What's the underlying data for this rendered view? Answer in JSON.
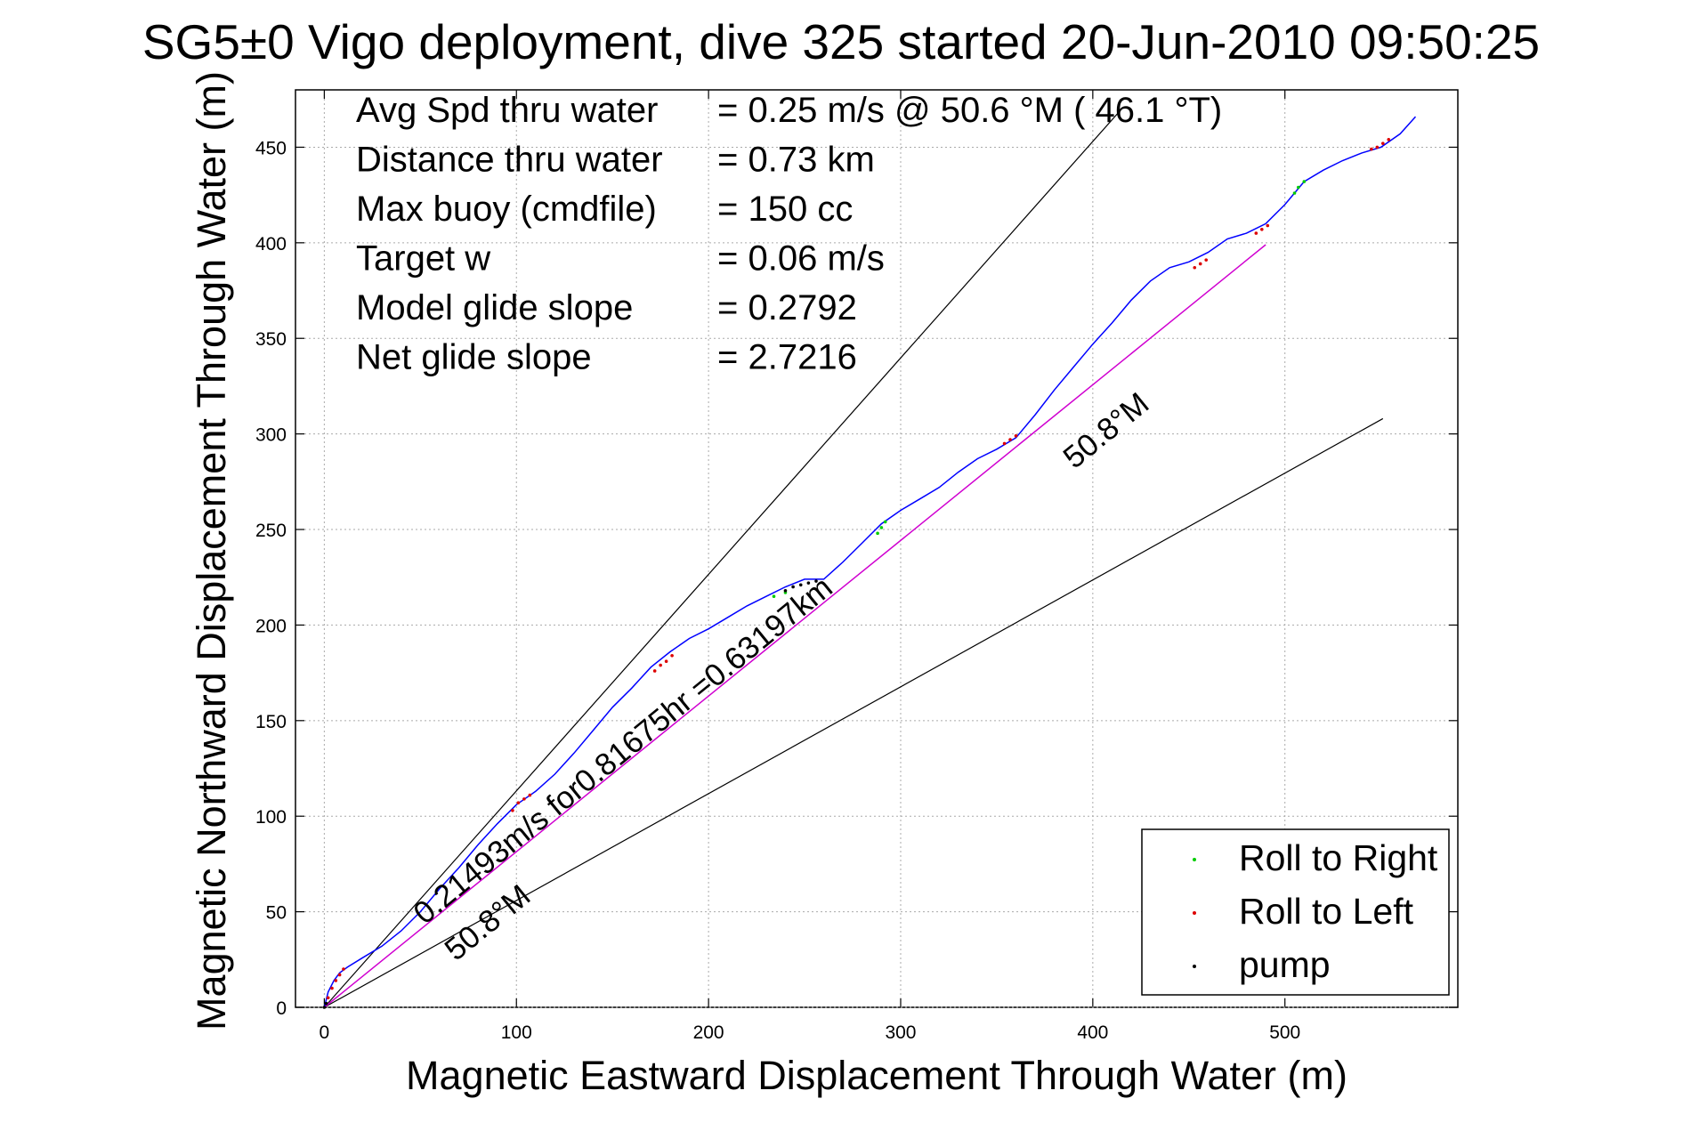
{
  "chart_data": {
    "type": "line",
    "title": "SG5±0 Vigo deployment, dive 325 started 20-Jun-2010 09:50:25",
    "xlabel": "Magnetic Eastward Displacement Through Water (m)",
    "ylabel": "Magnetic Northward Displacement Through Water (m)",
    "xlim": [
      -15,
      590
    ],
    "ylim": [
      0,
      480
    ],
    "xticks": [
      0,
      100,
      200,
      300,
      400,
      500
    ],
    "yticks": [
      0,
      50,
      100,
      150,
      200,
      250,
      300,
      350,
      400,
      450
    ],
    "grid": true,
    "legend_position": "bottom-right",
    "stats": [
      {
        "label": "Avg Spd thru water",
        "value": "=  0.25 m/s @  50.6 °M ( 46.1 °T)"
      },
      {
        "label": "Distance thru water",
        "value": "=  0.73 km"
      },
      {
        "label": "Max buoy (cmdfile)",
        "value": "= 150 cc"
      },
      {
        "label": "Target w",
        "value": "= 0.06 m/s"
      },
      {
        "label": "Model glide slope",
        "value": "= 0.2792"
      },
      {
        "label": "Net glide slope",
        "value": "= 2.7216"
      }
    ],
    "annotations": {
      "net_vector": "0.21493m/s for0.81675hr =0.63197km",
      "heading_upper": "50.8°M",
      "heading_lower": "50.8°M"
    },
    "track": {
      "x": [
        0,
        2,
        5,
        8,
        12,
        20,
        30,
        40,
        50,
        60,
        70,
        80,
        90,
        100,
        110,
        120,
        130,
        140,
        150,
        160,
        170,
        180,
        190,
        200,
        210,
        220,
        230,
        240,
        250,
        260,
        270,
        280,
        290,
        300,
        310,
        320,
        330,
        340,
        350,
        360,
        370,
        380,
        390,
        400,
        410,
        420,
        430,
        440,
        450,
        460,
        470,
        480,
        490,
        500,
        510,
        520,
        530,
        540,
        550,
        560,
        568
      ],
      "y": [
        0,
        8,
        14,
        18,
        21,
        26,
        32,
        40,
        50,
        62,
        73,
        85,
        96,
        106,
        113,
        122,
        133,
        145,
        157,
        167,
        178,
        186,
        193,
        198,
        204,
        210,
        215,
        220,
        224,
        224,
        233,
        243,
        253,
        260,
        266,
        272,
        280,
        287,
        292,
        298,
        310,
        323,
        335,
        347,
        358,
        370,
        380,
        387,
        390,
        395,
        402,
        405,
        410,
        420,
        432,
        438,
        443,
        447,
        450,
        457,
        466
      ]
    },
    "net_line": {
      "x": [
        0,
        490
      ],
      "y": [
        0,
        399
      ]
    },
    "bound_lines": [
      {
        "x": [
          0,
          415
        ],
        "y": [
          0,
          470
        ]
      },
      {
        "x": [
          0,
          551
        ],
        "y": [
          0,
          308
        ]
      }
    ],
    "series": [
      {
        "name": "Roll to Right",
        "color": "#00cc00",
        "x": [
          234,
          240,
          288,
          290,
          292,
          505,
          507,
          510
        ],
        "y": [
          215,
          217,
          248,
          251,
          254,
          426,
          429,
          432
        ]
      },
      {
        "name": "Roll to Left",
        "color": "#dd0000",
        "x": [
          2,
          4,
          6,
          8,
          10,
          98,
          101,
          104,
          107,
          172,
          175,
          178,
          181,
          354,
          357,
          360,
          453,
          456,
          459,
          485,
          488,
          491,
          545,
          548,
          551,
          554
        ],
        "y": [
          5,
          10,
          14,
          17,
          20,
          103,
          107,
          109,
          111,
          176,
          179,
          181,
          184,
          295,
          297,
          299,
          387,
          389,
          391,
          405,
          407,
          409,
          449,
          450,
          452,
          454
        ]
      },
      {
        "name": "pump",
        "color": "#000000",
        "x": [
          0,
          1,
          240,
          244,
          248,
          252,
          256
        ],
        "y": [
          0,
          2,
          218,
          220,
          221,
          222,
          223
        ]
      }
    ]
  }
}
